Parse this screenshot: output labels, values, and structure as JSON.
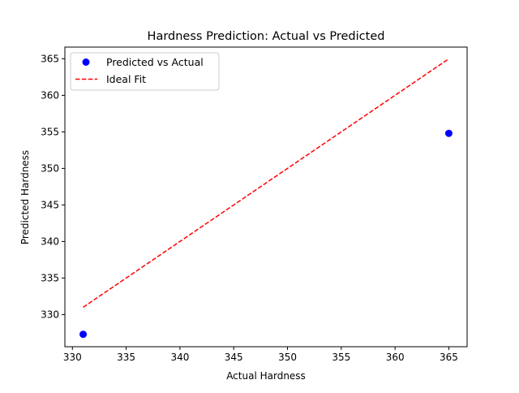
{
  "chart_data": {
    "type": "scatter",
    "title": "Hardness Prediction: Actual vs Predicted",
    "xlabel": "Actual Hardness",
    "ylabel": "Predicted Hardness",
    "xlim": [
      329.3,
      366.7
    ],
    "ylim": [
      325.6,
      366.6
    ],
    "xticks": [
      330,
      335,
      340,
      345,
      350,
      355,
      360,
      365
    ],
    "yticks": [
      330,
      335,
      340,
      345,
      350,
      355,
      360,
      365
    ],
    "grid": false,
    "legend_position": "upper-left",
    "series": [
      {
        "name": "Predicted vs Actual",
        "kind": "scatter",
        "color": "#0000ff",
        "points": [
          {
            "x": 331,
            "y": 327.3
          },
          {
            "x": 365,
            "y": 354.8
          }
        ]
      },
      {
        "name": "Ideal Fit",
        "kind": "line",
        "style": "dashed",
        "color": "#ff0000",
        "points": [
          {
            "x": 331,
            "y": 331
          },
          {
            "x": 365,
            "y": 365
          }
        ]
      }
    ]
  }
}
